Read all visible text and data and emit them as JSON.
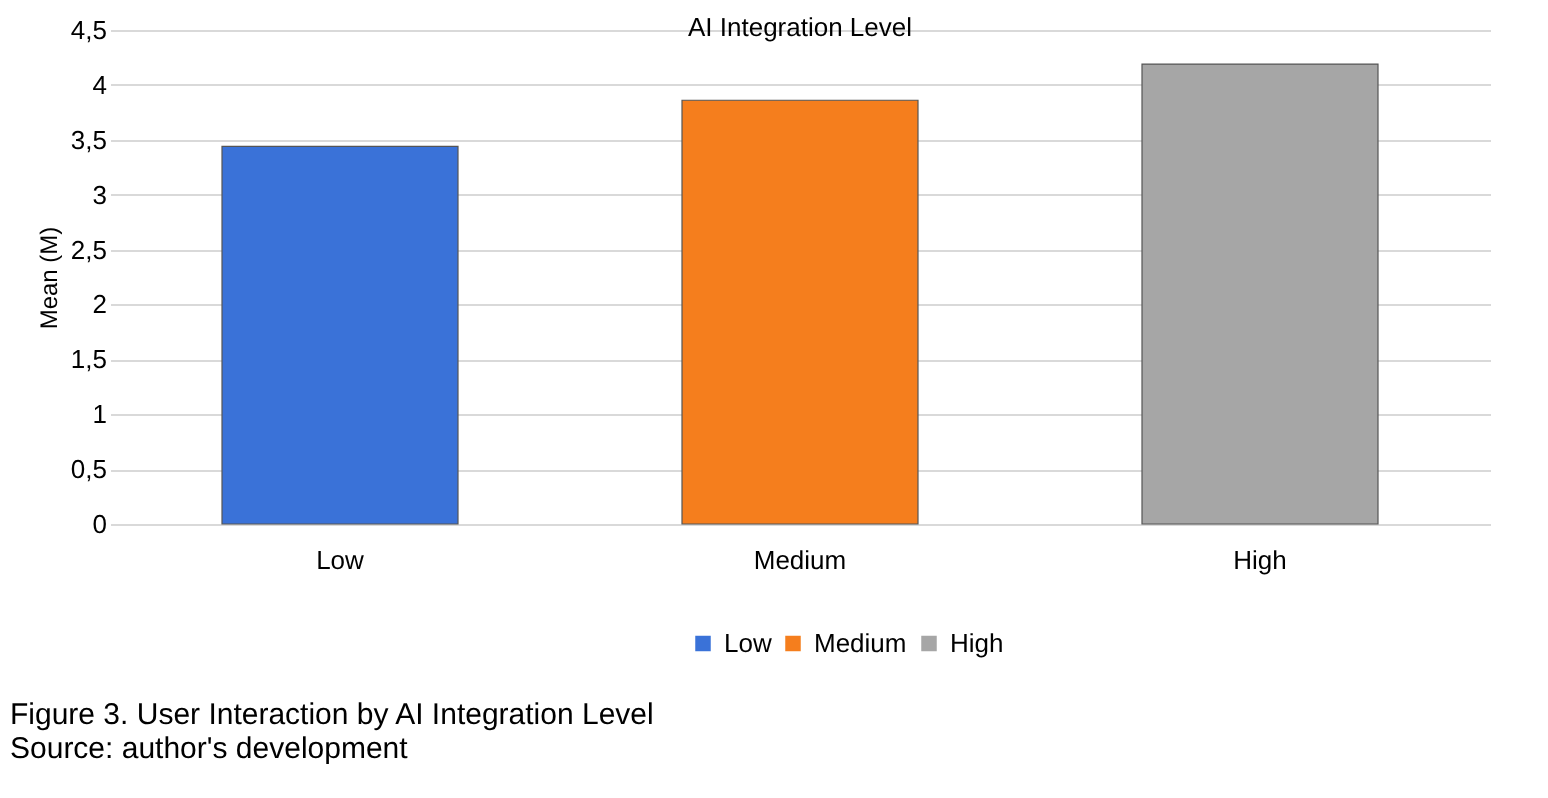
{
  "chart_data": {
    "type": "bar",
    "title": "AI Integration Level",
    "ylabel": "Mean (M)",
    "categories": [
      "Low",
      "Medium",
      "High"
    ],
    "series": [
      {
        "name": "Low",
        "color": "#3a72d8",
        "values": [
          3.44,
          null,
          null
        ]
      },
      {
        "name": "Medium",
        "color": "#f57e1d",
        "values": [
          null,
          3.86,
          null
        ]
      },
      {
        "name": "High",
        "color": "#a6a6a6",
        "values": [
          null,
          null,
          4.19
        ]
      }
    ],
    "ylim": [
      0,
      4.5
    ],
    "yticks": [
      0,
      {
        "value": 0.5,
        "label": "0,5"
      },
      1,
      {
        "value": 1.5,
        "label": "1,5"
      },
      2,
      {
        "value": 2.5,
        "label": "2,5"
      },
      3,
      {
        "value": 3.5,
        "label": "3,5"
      },
      4,
      {
        "value": 4.5,
        "label": "4,5"
      }
    ],
    "grid": "y",
    "legend": "bottom",
    "annotations": [
      "Figure 3. User Interaction by AI Integration Level",
      "Source: author's development"
    ]
  }
}
